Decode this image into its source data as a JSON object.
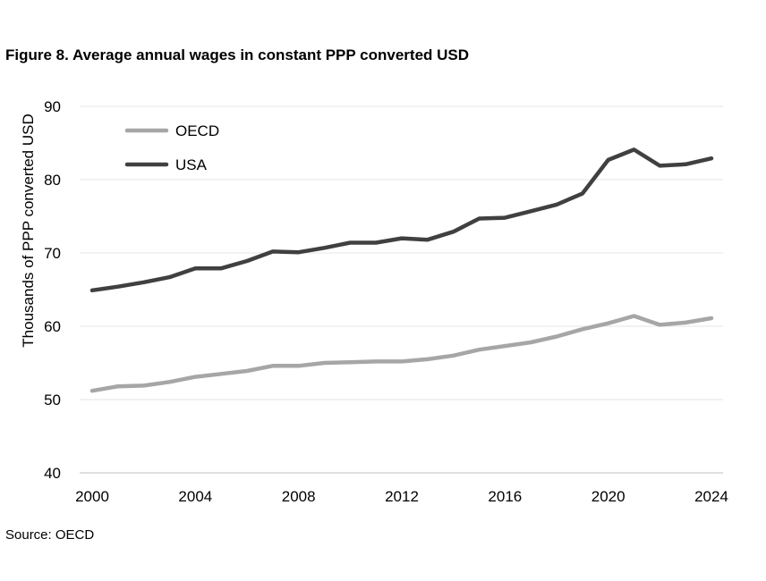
{
  "figure": {
    "title": "Figure 8. Average annual wages in constant PPP converted USD",
    "source": "Source: OECD"
  },
  "chart_data": {
    "type": "line",
    "title": "Figure 8. Average annual wages in constant PPP converted USD",
    "xlabel": "",
    "ylabel": "Thousands of PPP converted USD",
    "x": [
      2000,
      2001,
      2002,
      2003,
      2004,
      2005,
      2006,
      2007,
      2008,
      2009,
      2010,
      2011,
      2012,
      2013,
      2014,
      2015,
      2016,
      2017,
      2018,
      2019,
      2020,
      2021,
      2022,
      2023,
      2024
    ],
    "xticks": [
      2000,
      2004,
      2008,
      2012,
      2016,
      2020,
      2024
    ],
    "xlim": [
      2000,
      2024
    ],
    "yticks": [
      40,
      50,
      60,
      70,
      80,
      90
    ],
    "ylim": [
      40,
      90
    ],
    "grid": true,
    "legend_position": "top-left",
    "series": [
      {
        "name": "OECD",
        "color": "#A6A6A6",
        "values": [
          51.2,
          51.8,
          51.9,
          52.4,
          53.1,
          53.5,
          53.9,
          54.6,
          54.6,
          55.0,
          55.1,
          55.2,
          55.2,
          55.5,
          56.0,
          56.8,
          57.3,
          57.8,
          58.6,
          59.6,
          60.4,
          61.4,
          60.2,
          60.5,
          61.1
        ]
      },
      {
        "name": "USA",
        "color": "#404040",
        "values": [
          64.9,
          65.4,
          66.0,
          66.7,
          67.9,
          67.9,
          68.9,
          70.2,
          70.1,
          70.7,
          71.4,
          71.4,
          72.0,
          71.8,
          72.9,
          74.7,
          74.8,
          75.7,
          76.6,
          78.1,
          82.7,
          84.1,
          81.9,
          82.1,
          82.9
        ]
      }
    ]
  }
}
